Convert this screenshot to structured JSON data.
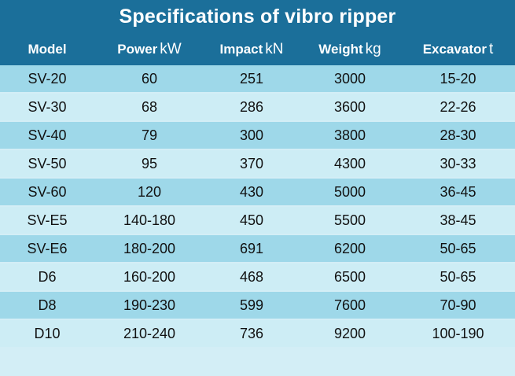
{
  "title": "Specifications of vibro ripper",
  "columns": [
    {
      "label": "Model",
      "unit": ""
    },
    {
      "label": "Power",
      "unit": "kW"
    },
    {
      "label": "Impact",
      "unit": "kN"
    },
    {
      "label": "Weight",
      "unit": "kg"
    },
    {
      "label": "Excavator",
      "unit": "t"
    }
  ],
  "rows": [
    [
      "SV-20",
      "60",
      "251",
      "3000",
      "15-20"
    ],
    [
      "SV-30",
      "68",
      "286",
      "3600",
      "22-26"
    ],
    [
      "SV-40",
      "79",
      "300",
      "3800",
      "28-30"
    ],
    [
      "SV-50",
      "95",
      "370",
      "4300",
      "30-33"
    ],
    [
      "SV-60",
      "120",
      "430",
      "5000",
      "36-45"
    ],
    [
      "SV-E5",
      "140-180",
      "450",
      "5500",
      "38-45"
    ],
    [
      "SV-E6",
      "180-200",
      "691",
      "6200",
      "50-65"
    ],
    [
      "D6",
      "160-200",
      "468",
      "6500",
      "50-65"
    ],
    [
      "D8",
      "190-230",
      "599",
      "7600",
      "70-90"
    ],
    [
      "D10",
      "210-240",
      "736",
      "9200",
      "100-190"
    ]
  ],
  "colors": {
    "header_bg": "#1b6f9a",
    "row_dark": "#9ed8e9",
    "row_light": "#cdedf5",
    "page_bg": "#d3eef6"
  }
}
